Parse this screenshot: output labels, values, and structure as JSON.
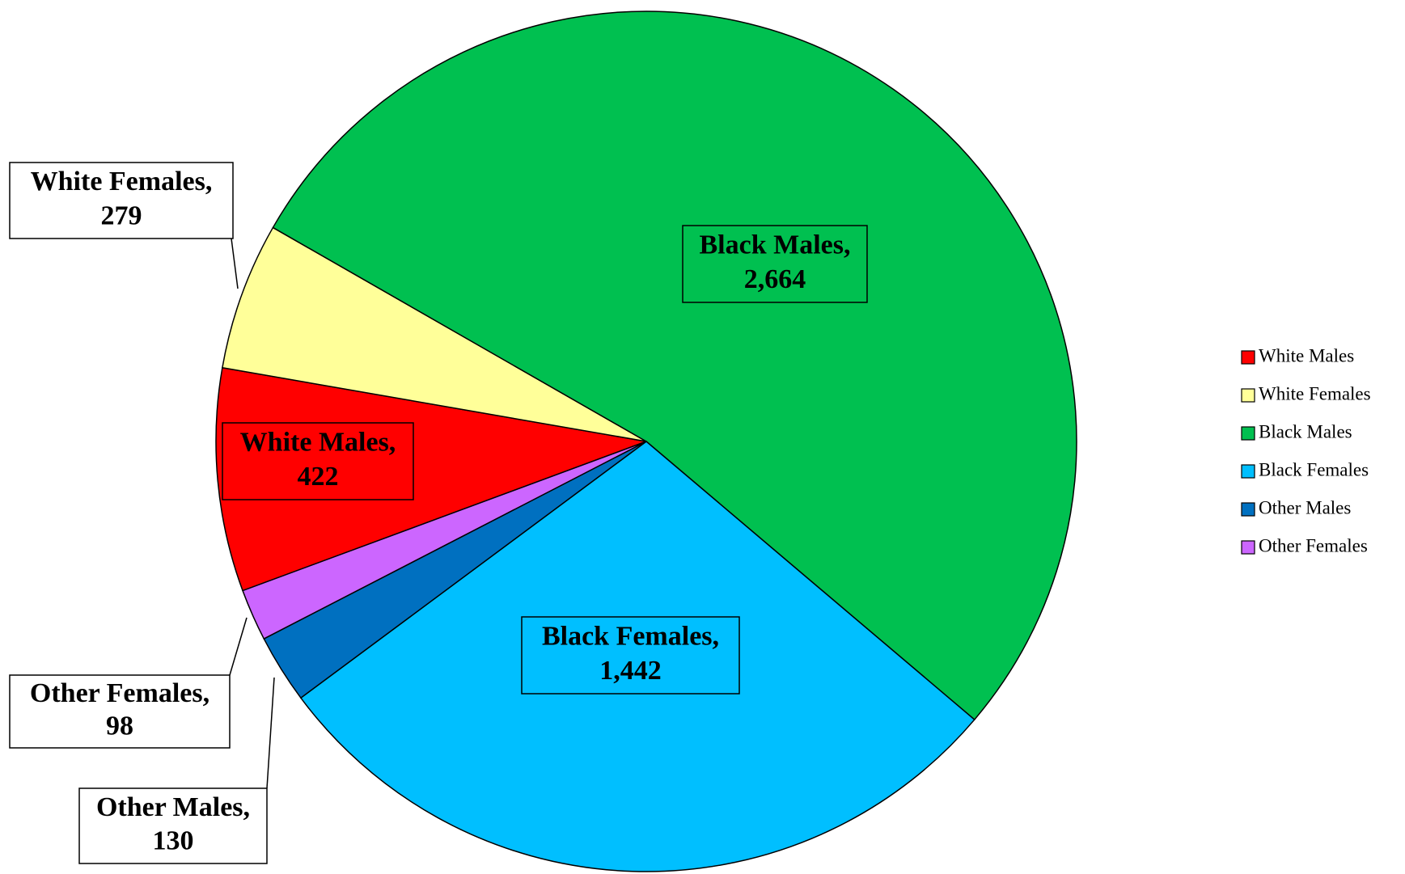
{
  "chart_data": {
    "type": "pie",
    "categories": [
      "White Males",
      "White Females",
      "Black Males",
      "Black Females",
      "Other Males",
      "Other Females"
    ],
    "label_names": [
      "White Males,",
      "White Females,",
      "Black Males,",
      "Black Females,",
      "Other Males,",
      "Other Females,"
    ],
    "values": [
      422,
      279,
      2664,
      1442,
      130,
      98
    ],
    "value_labels": [
      "422",
      "279",
      "2,664",
      "1,442",
      "130",
      "98"
    ],
    "colors": [
      "#ff0000",
      "#ffff99",
      "#00c050",
      "#00bfff",
      "#0070c0",
      "#cc66ff"
    ],
    "legend": "right"
  }
}
